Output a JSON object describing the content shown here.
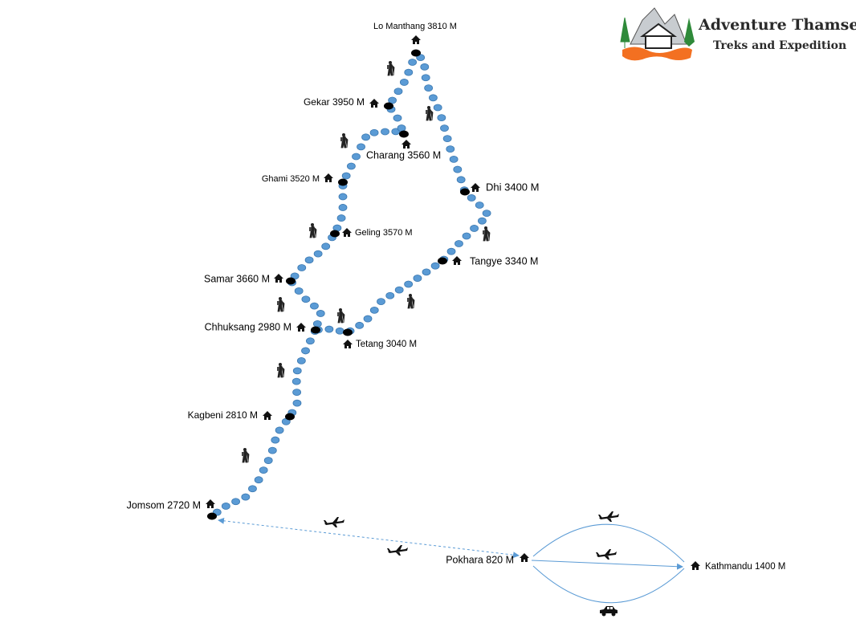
{
  "logo": {
    "name": "Adventure Thamserku",
    "tagline": "Treks and Expedition"
  },
  "places": [
    {
      "label": "Lo Manthang 3810 M"
    },
    {
      "label": "Gekar 3950 M"
    },
    {
      "label": "Charang 3560 M"
    },
    {
      "label": "Ghami 3520 M"
    },
    {
      "label": "Dhi 3400 M"
    },
    {
      "label": "Geling 3570 M"
    },
    {
      "label": "Tangye 3340 M"
    },
    {
      "label": "Samar 3660 M"
    },
    {
      "label": "Chhuksang 2980 M"
    },
    {
      "label": "Tetang 3040 M"
    },
    {
      "label": "Kagbeni 2810 M"
    },
    {
      "label": "Jomsom 2720 M"
    },
    {
      "label": "Pokhara 820 M"
    },
    {
      "label": "Kathmandu 1400 M"
    }
  ]
}
